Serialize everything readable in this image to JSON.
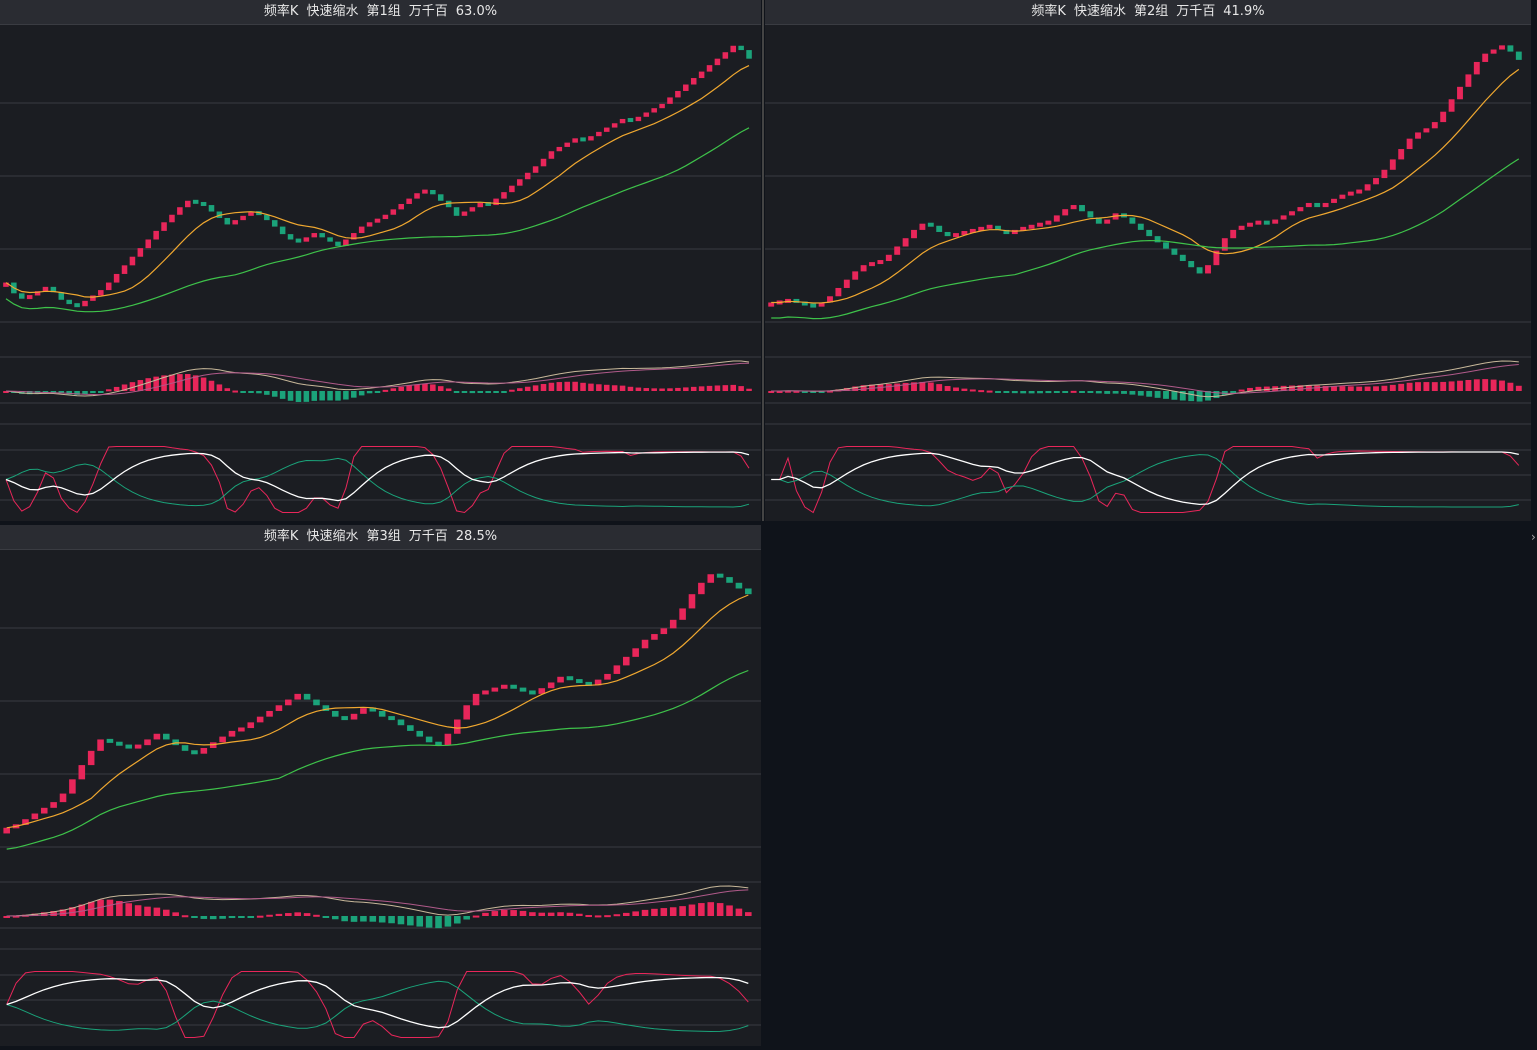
{
  "panels": [
    {
      "title": "频率K",
      "mode": "快速缩水",
      "group": "第1组",
      "unit": "万千百",
      "percent": "63.0%"
    },
    {
      "title": "频率K",
      "mode": "快速缩水",
      "group": "第2组",
      "unit": "万千百",
      "percent": "41.9%"
    },
    {
      "title": "频率K",
      "mode": "快速缩水",
      "group": "第3组",
      "unit": "万千百",
      "percent": "28.5%"
    }
  ],
  "colors": {
    "up": "#e8265a",
    "down": "#1ba37a",
    "ma_short": "#f0a830",
    "ma_long": "#3ec24a",
    "macd_dif": "#c8b89a",
    "macd_dea": "#b05a8a",
    "kdj_k": "#ffffff",
    "kdj_d": "#e8265a",
    "kdj_j": "#1ba37a",
    "grid": "#3a3c42"
  },
  "chart_data": [
    {
      "type": "candlestick",
      "panel": 1,
      "close": [
        11,
        10,
        9.5,
        9.8,
        10.2,
        10.6,
        10.1,
        9.4,
        9.0,
        8.8,
        9.3,
        9.8,
        10.3,
        11.0,
        11.8,
        12.6,
        13.4,
        14.2,
        15.0,
        15.8,
        16.6,
        17.3,
        18.0,
        18.6,
        18.4,
        18.2,
        17.6,
        17.0,
        16.4,
        16.8,
        17.2,
        17.6,
        17.3,
        16.8,
        16.2,
        15.5,
        15.0,
        14.8,
        15.2,
        15.6,
        15.2,
        14.8,
        14.4,
        15.0,
        15.6,
        16.2,
        16.6,
        16.9,
        17.3,
        17.8,
        18.3,
        18.8,
        19.3,
        19.6,
        19.2,
        18.6,
        18.0,
        17.2,
        17.6,
        18.0,
        18.4,
        18.2,
        18.8,
        19.4,
        20.0,
        20.6,
        21.2,
        21.8,
        22.5,
        23.2,
        23.6,
        24.0,
        24.4,
        24.2,
        24.6,
        25.0,
        25.4,
        25.8,
        26.2,
        26.0,
        26.4,
        26.8,
        27.2,
        27.6,
        28.2,
        28.8,
        29.4,
        30.0,
        30.6,
        31.2,
        31.8,
        32.4,
        33.0,
        32.6,
        31.8
      ]
    },
    {
      "type": "candlestick",
      "panel": 2,
      "close": [
        11,
        11,
        11.3,
        11.0,
        10.8,
        10.6,
        11.0,
        11.6,
        12.4,
        13.2,
        14.0,
        14.6,
        14.8,
        15.0,
        15.6,
        16.4,
        17.2,
        18.0,
        18.6,
        18.4,
        17.8,
        17.4,
        17.6,
        17.8,
        18.0,
        18.2,
        18.4,
        18.0,
        17.6,
        18.0,
        18.2,
        18.4,
        18.6,
        18.8,
        19.4,
        20.0,
        20.4,
        19.8,
        19.2,
        18.6,
        19.0,
        19.6,
        19.2,
        18.6,
        18.0,
        17.4,
        16.8,
        16.2,
        15.6,
        15.0,
        14.4,
        13.8,
        14.6,
        16.0,
        17.2,
        18.0,
        18.4,
        18.6,
        18.8,
        18.6,
        19.0,
        19.4,
        19.8,
        20.2,
        20.6,
        20.2,
        20.6,
        21.0,
        21.4,
        21.6,
        21.8,
        22.4,
        23.0,
        23.8,
        24.8,
        25.8,
        26.8,
        27.4,
        27.8,
        28.4,
        29.4,
        30.6,
        31.8,
        33.0,
        34.2,
        35.0,
        35.4,
        35.8,
        35.2,
        34.4
      ]
    },
    {
      "type": "candlestick",
      "panel": 3,
      "close": [
        11,
        11.2,
        11.6,
        12.0,
        12.4,
        12.8,
        13.4,
        14.4,
        15.4,
        16.4,
        17.2,
        17.0,
        16.8,
        16.6,
        16.8,
        17.2,
        17.6,
        17.2,
        16.8,
        16.4,
        16.2,
        16.6,
        17.0,
        17.4,
        17.8,
        18.0,
        18.4,
        18.8,
        19.2,
        19.6,
        20.0,
        20.4,
        20.0,
        19.6,
        19.2,
        18.8,
        18.6,
        19.0,
        19.4,
        19.2,
        18.8,
        18.6,
        18.2,
        17.8,
        17.4,
        17.0,
        16.8,
        17.6,
        18.6,
        19.6,
        20.4,
        20.6,
        20.8,
        21.0,
        20.8,
        20.6,
        20.4,
        20.8,
        21.2,
        21.6,
        21.4,
        21.2,
        21.0,
        21.4,
        21.8,
        22.4,
        23.0,
        23.6,
        24.2,
        24.6,
        25.0,
        25.6,
        26.4,
        27.4,
        28.2,
        28.8,
        28.6,
        28.2,
        27.8,
        27.4
      ]
    }
  ]
}
